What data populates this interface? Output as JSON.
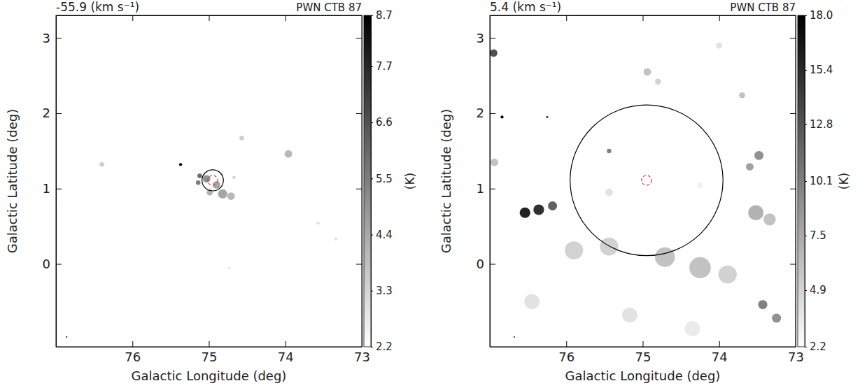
{
  "chart_data": [
    {
      "type": "map",
      "title": "PWN CTB 87",
      "subtitle": "-55.9 (km s⁻¹)",
      "x_label": "Galactic Longitude (deg)",
      "y_label": "Galactic Latitude (deg)",
      "xlim": [
        77,
        73
      ],
      "ylim": [
        -1.1,
        3.3
      ],
      "xticks": [
        76,
        75,
        74,
        73
      ],
      "yticks": [
        0,
        1,
        2,
        3
      ],
      "clumps": {
        "x": [
          75.03,
          74.9,
          74.82,
          74.71,
          74.99,
          75.12,
          75.14,
          75.37,
          74.57,
          73.96,
          76.4,
          74.67,
          73.57,
          73.34,
          74.73,
          76.86
        ],
        "y": [
          1.13,
          1.05,
          0.93,
          0.9,
          0.95,
          1.17,
          1.08,
          1.32,
          1.67,
          1.46,
          1.32,
          1.15,
          0.54,
          0.33,
          -0.06,
          -0.97
        ],
        "values": [
          5.0,
          4.5,
          4.5,
          4.0,
          4.2,
          6.0,
          5.5,
          8.7,
          3.5,
          4.0,
          3.5,
          3.5,
          3.0,
          3.0,
          3.0,
          8.0
        ],
        "size": [
          0.05,
          0.05,
          0.06,
          0.05,
          0.04,
          0.03,
          0.03,
          0.02,
          0.03,
          0.05,
          0.03,
          0.02,
          0.02,
          0.02,
          0.015,
          0.01
        ]
      },
      "regions": [
        {
          "x": 74.95,
          "y": 1.11,
          "r": 0.14,
          "color": "#000000",
          "line_style": "solid"
        },
        {
          "x": 74.95,
          "y": 1.11,
          "r": 0.065,
          "color": "#e03030",
          "line_style": "dashed"
        }
      ],
      "colorbar": {
        "label": "(K)",
        "range": [
          2.2,
          8.7
        ],
        "ticks": [
          2.2,
          3.3,
          4.4,
          5.5,
          6.6,
          7.7,
          8.7
        ]
      }
    },
    {
      "type": "map",
      "title": "PWN CTB 87",
      "subtitle": "5.4 (km s⁻¹)",
      "x_label": "Galactic Longitude (deg)",
      "y_label": "Galactic Latitude (deg)",
      "xlim": [
        77,
        73
      ],
      "ylim": [
        -1.1,
        3.3
      ],
      "xticks": [
        76,
        75,
        74,
        73
      ],
      "yticks": [
        0,
        1,
        2,
        3
      ],
      "clumps": {
        "x": [
          76.54,
          76.36,
          76.18,
          76.84,
          76.25,
          76.95,
          75.44,
          74.94,
          74.8,
          73.48,
          73.6,
          73.7,
          76.94,
          75.9,
          75.44,
          74.71,
          74.25,
          73.89,
          73.52,
          73.34,
          76.45,
          73.43,
          73.25,
          75.17,
          74.35,
          75.44,
          74.25,
          76.68,
          74.0
        ],
        "y": [
          0.68,
          0.72,
          0.77,
          1.95,
          1.95,
          2.8,
          1.5,
          2.55,
          2.42,
          1.44,
          1.29,
          2.24,
          1.35,
          0.18,
          0.23,
          0.09,
          -0.05,
          -0.14,
          0.68,
          0.59,
          -0.5,
          -0.54,
          -0.72,
          -0.68,
          -0.86,
          0.95,
          1.04,
          -0.97,
          2.9
        ],
        "values": [
          16,
          15,
          12,
          18,
          14,
          13,
          10,
          6,
          5,
          9,
          8,
          6,
          6,
          5,
          5,
          6,
          6,
          5,
          7,
          6,
          4,
          10,
          9,
          4,
          3.5,
          4,
          3,
          15,
          4
        ],
        "size": [
          0.07,
          0.07,
          0.06,
          0.02,
          0.015,
          0.05,
          0.03,
          0.05,
          0.04,
          0.06,
          0.05,
          0.04,
          0.05,
          0.12,
          0.12,
          0.13,
          0.14,
          0.12,
          0.1,
          0.08,
          0.1,
          0.06,
          0.06,
          0.1,
          0.1,
          0.05,
          0.04,
          0.01,
          0.04
        ]
      },
      "regions": [
        {
          "x": 74.95,
          "y": 1.11,
          "r": 1.0,
          "color": "#000000",
          "line_style": "solid"
        },
        {
          "x": 74.95,
          "y": 1.11,
          "r": 0.065,
          "color": "#e03030",
          "line_style": "dashed"
        }
      ],
      "colorbar": {
        "label": "(K)",
        "range": [
          2.2,
          18.0
        ],
        "ticks": [
          2.2,
          4.9,
          7.5,
          10.1,
          12.8,
          15.4,
          {
            "value": 18.0,
            "label": "18.0"
          }
        ]
      }
    }
  ]
}
